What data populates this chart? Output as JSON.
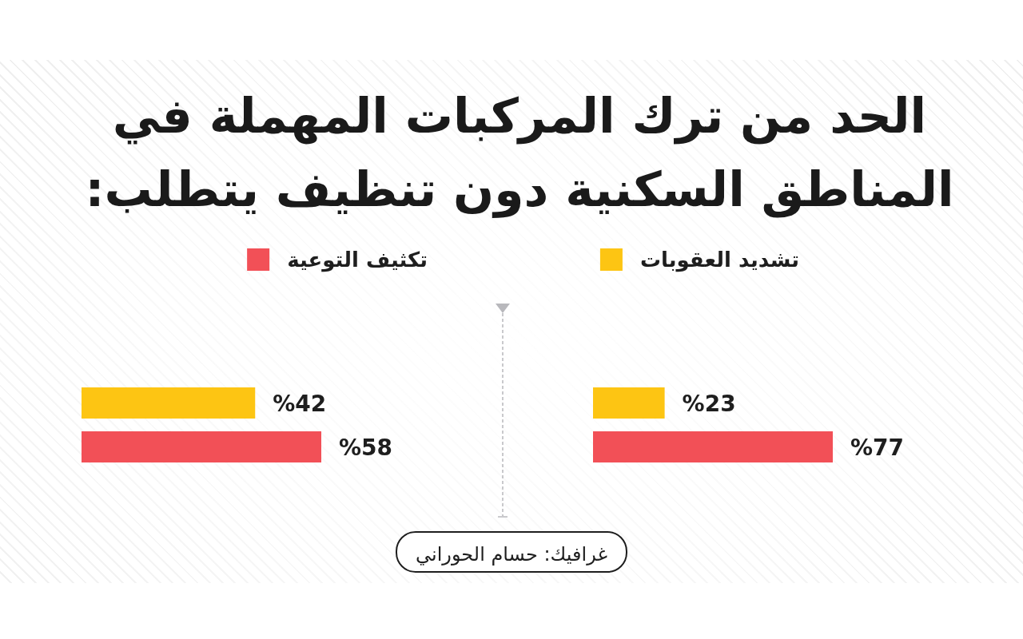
{
  "chart_data": [
    {
      "type": "bar",
      "orientation": "horizontal",
      "title": "الحد من ترك المركبات المهملة في المناطق السكنية دون تنظيف يتطلب:",
      "categories": [
        null
      ],
      "series": [
        {
          "name": "تشديد العقوبات",
          "color": "#fdc513",
          "values": [
            23
          ],
          "value_labels": [
            "%23"
          ]
        },
        {
          "name": "تكثيف التوعية",
          "color": "#f25057",
          "values": [
            77
          ],
          "value_labels": [
            "%77"
          ]
        }
      ],
      "legend": "top",
      "annotations": [
        "غرافيك: حسام الحوراني"
      ]
    },
    {
      "type": "bar",
      "orientation": "horizontal",
      "categories": [
        null
      ],
      "series": [
        {
          "color": "#fdc513",
          "values": [
            42
          ],
          "value_labels": [
            "%42"
          ]
        },
        {
          "color": "#f25057",
          "values": [
            58
          ],
          "value_labels": [
            "%58"
          ]
        }
      ]
    }
  ]
}
